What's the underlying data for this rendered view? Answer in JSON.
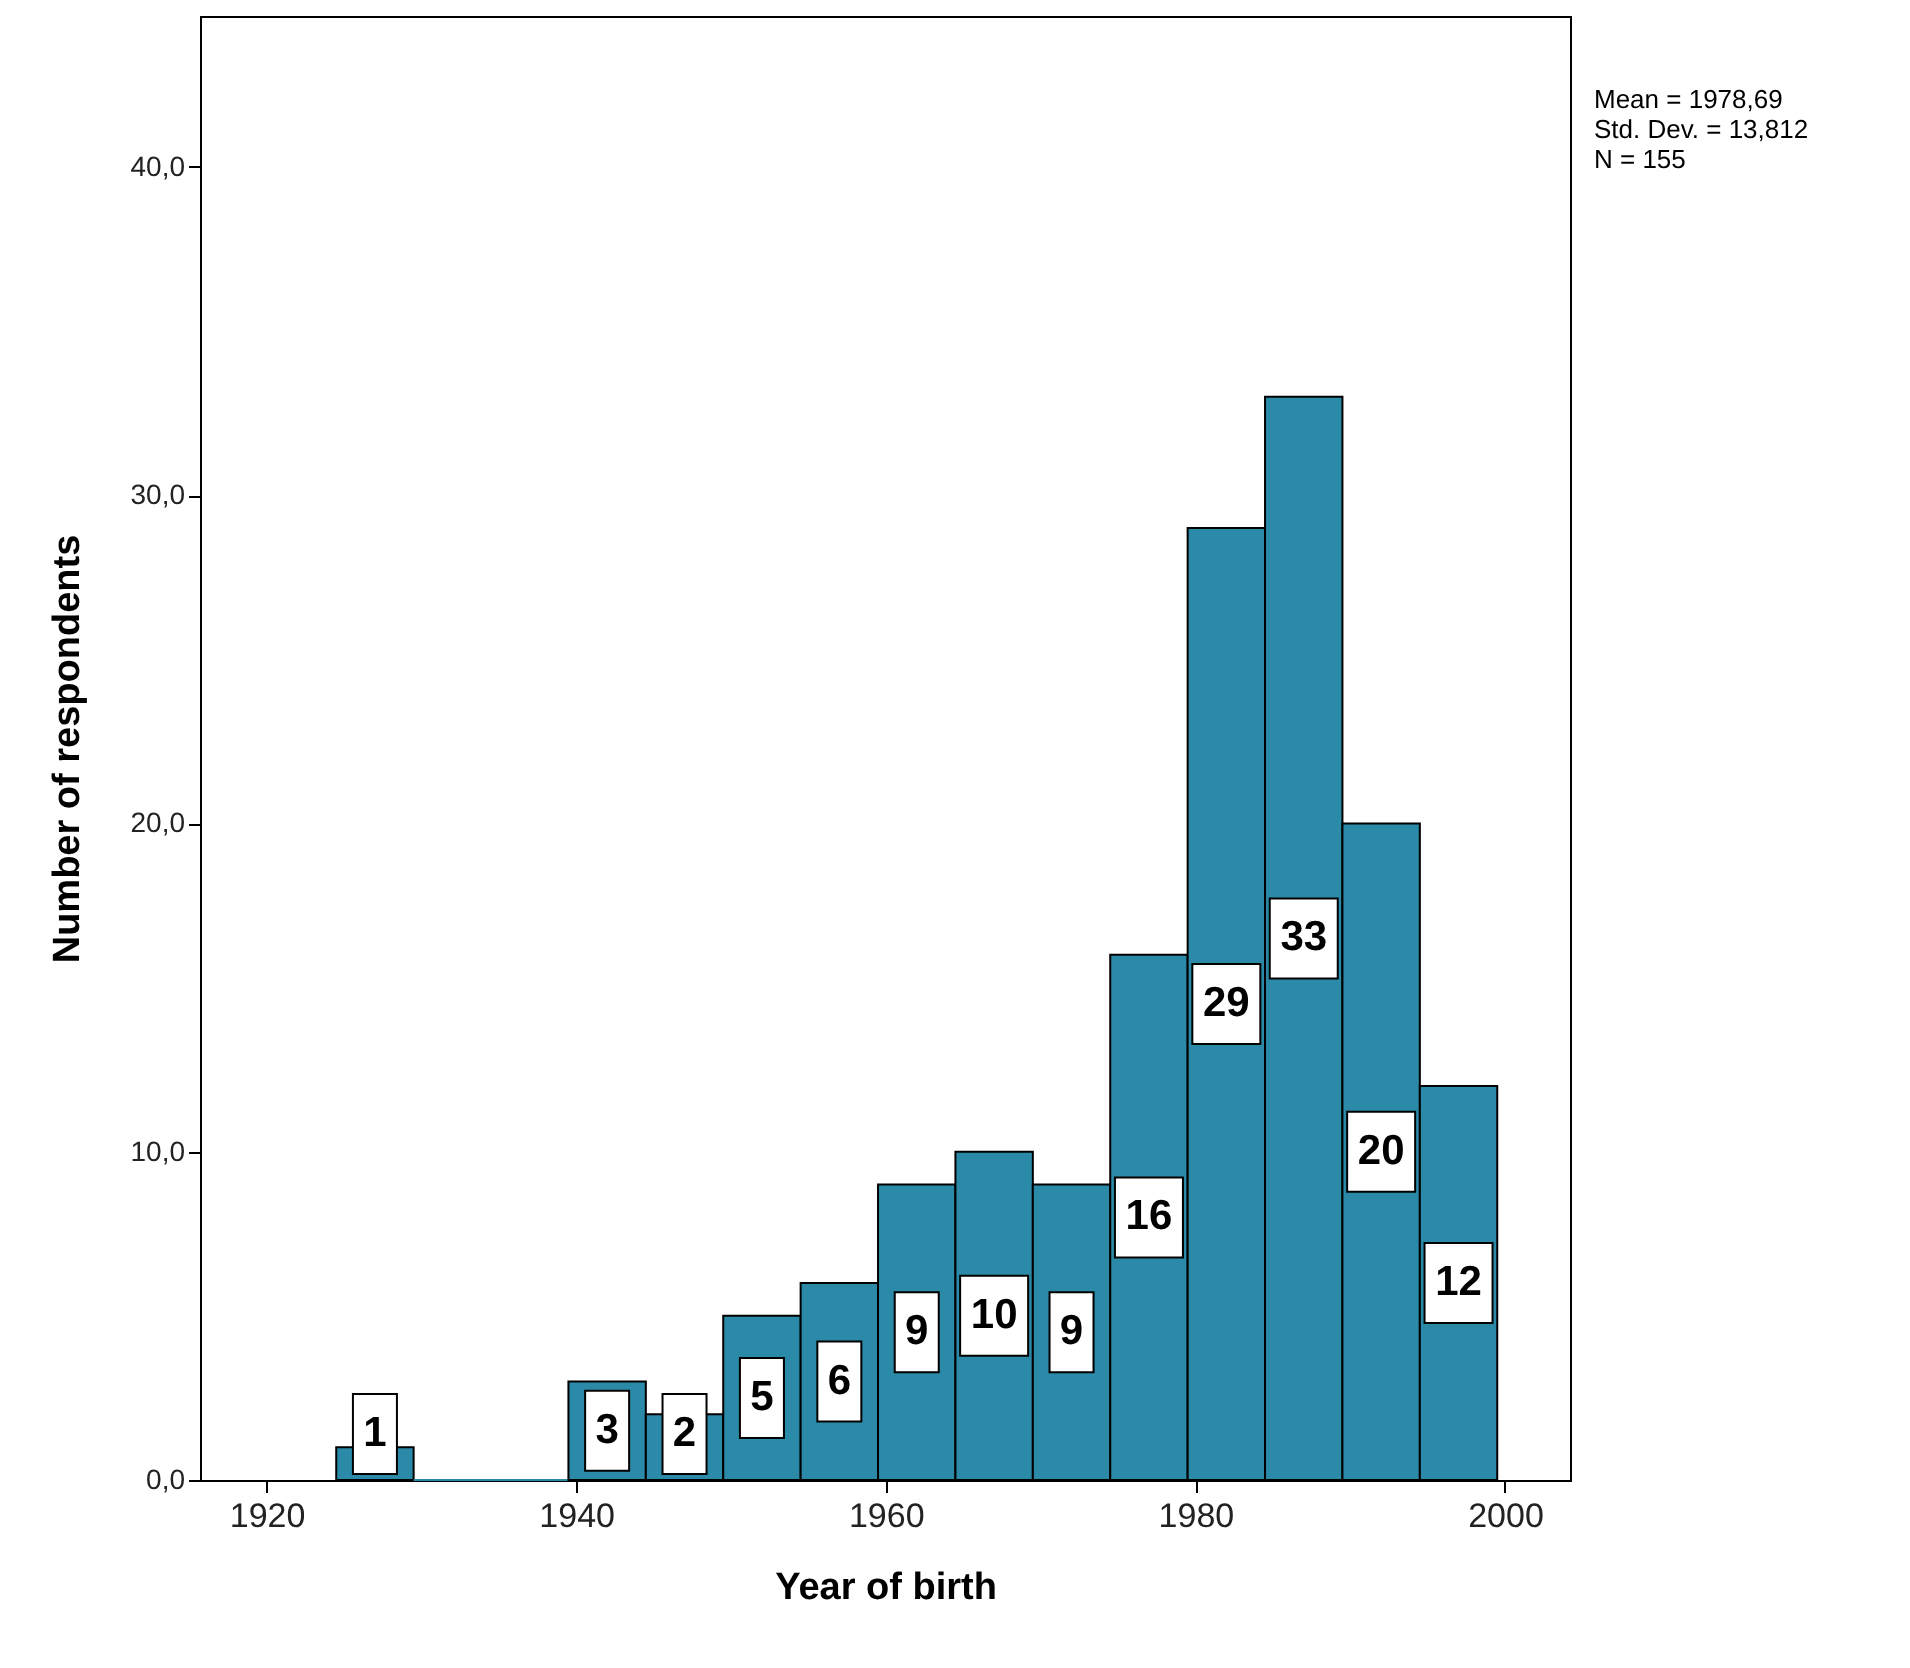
{
  "chart_data": {
    "type": "histogram",
    "xlabel": "Year of birth",
    "ylabel": "Number of respondents",
    "bins": [
      1924.5,
      1929.5,
      1934.5,
      1939.5,
      1944.5,
      1949.5,
      1954.5,
      1959.5,
      1964.5,
      1969.5,
      1974.5,
      1979.5,
      1984.5,
      1989.5,
      1994.5,
      1999.5
    ],
    "values": [
      1,
      0,
      0,
      3,
      2,
      5,
      6,
      9,
      10,
      9,
      16,
      29,
      33,
      20,
      12
    ],
    "value_labels": [
      "1",
      null,
      null,
      "3",
      "2",
      "5",
      "6",
      "9",
      "10",
      "9",
      "16",
      "29",
      "33",
      "20",
      "12"
    ],
    "color": "#2a8aa8",
    "xlim": [
      1915.7,
      2004.2
    ],
    "xticks": [
      1920,
      1940,
      1960,
      1980,
      2000
    ],
    "ylim": [
      0,
      44.6
    ],
    "yticks": [
      {
        "value": 0,
        "label": "0,0"
      },
      {
        "value": 10,
        "label": "10,0"
      },
      {
        "value": 20,
        "label": "20,0"
      },
      {
        "value": 30,
        "label": "30,0"
      },
      {
        "value": 40,
        "label": "40,0"
      }
    ],
    "annotations": [
      "Mean = 1978,69",
      "Std. Dev. = 13,812",
      "N = 155"
    ],
    "grid": false
  }
}
